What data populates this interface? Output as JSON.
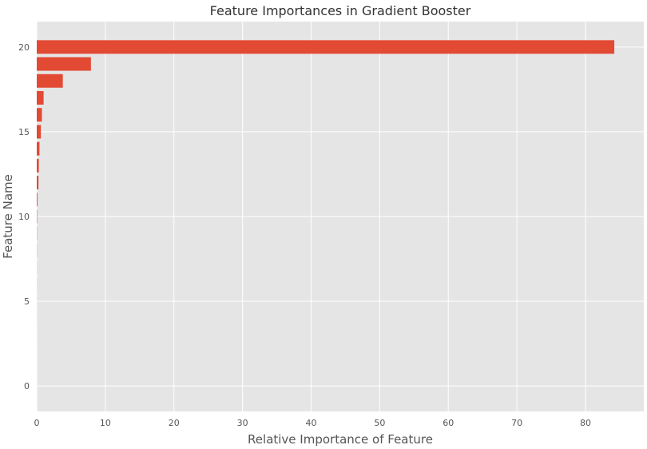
{
  "chart_data": {
    "type": "bar",
    "orientation": "horizontal",
    "title": "Feature Importances in Gradient Booster",
    "xlabel": "Relative Importance of Feature",
    "ylabel": "Feature Name",
    "xlim": [
      0,
      88.5
    ],
    "ylim": [
      -1.5,
      21.5
    ],
    "xticks": [
      0,
      10,
      20,
      30,
      40,
      50,
      60,
      70,
      80
    ],
    "yticks": [
      0,
      5,
      10,
      15,
      20
    ],
    "grid": true,
    "colors": {
      "bar": "#E24A33",
      "background": "#E5E5E5",
      "grid": "#FFFFFF"
    },
    "bars": [
      {
        "y": 20,
        "value": 84.2
      },
      {
        "y": 19,
        "value": 7.9
      },
      {
        "y": 18,
        "value": 3.8
      },
      {
        "y": 17,
        "value": 1.0
      },
      {
        "y": 16,
        "value": 0.75
      },
      {
        "y": 15,
        "value": 0.6
      },
      {
        "y": 14,
        "value": 0.4
      },
      {
        "y": 13,
        "value": 0.3
      },
      {
        "y": 12,
        "value": 0.25
      },
      {
        "y": 11,
        "value": 0.1
      },
      {
        "y": 10,
        "value": 0.05
      },
      {
        "y": 9,
        "value": 0.03
      },
      {
        "y": 8,
        "value": 0.02
      },
      {
        "y": 7,
        "value": 0.01
      },
      {
        "y": 6,
        "value": 0.01
      },
      {
        "y": 5,
        "value": 0.005
      },
      {
        "y": 4,
        "value": 0.005
      },
      {
        "y": 3,
        "value": 0.002
      },
      {
        "y": 2,
        "value": 0.001
      },
      {
        "y": 1,
        "value": 0.001
      },
      {
        "y": 0,
        "value": 0.001
      }
    ]
  }
}
